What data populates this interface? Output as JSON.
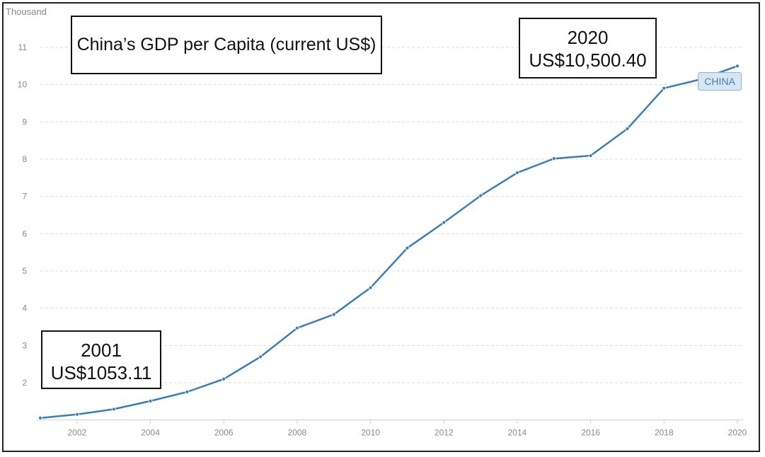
{
  "chart_data": {
    "type": "line",
    "title": "China’s GDP per Capita (current US$)",
    "y_unit_label": "Thousand",
    "xlabel": "",
    "ylabel": "",
    "x": [
      2001,
      2002,
      2003,
      2004,
      2005,
      2006,
      2007,
      2008,
      2009,
      2010,
      2011,
      2012,
      2013,
      2014,
      2015,
      2016,
      2017,
      2018,
      2019,
      2020
    ],
    "series": [
      {
        "name": "CHINA",
        "color": "#3b7db5",
        "values": [
          1.053,
          1.149,
          1.289,
          1.509,
          1.753,
          2.099,
          2.694,
          3.468,
          3.832,
          4.55,
          5.614,
          6.301,
          7.02,
          7.636,
          8.016,
          8.094,
          8.817,
          9.905,
          10.144,
          10.5
        ]
      }
    ],
    "x_ticks": [
      "2002",
      "2004",
      "2006",
      "2008",
      "2010",
      "2012",
      "2014",
      "2016",
      "2018",
      "2020"
    ],
    "y_ticks": [
      "2",
      "3",
      "4",
      "5",
      "6",
      "7",
      "8",
      "9",
      "10",
      "11"
    ],
    "ylim": [
      1,
      11.5
    ],
    "xlim": [
      2001,
      2020
    ],
    "grid": true,
    "annotations": [
      {
        "line1": "2020",
        "line2": "US$10,500.40"
      },
      {
        "line1": "2001",
        "line2": "US$1053.11"
      }
    ]
  }
}
